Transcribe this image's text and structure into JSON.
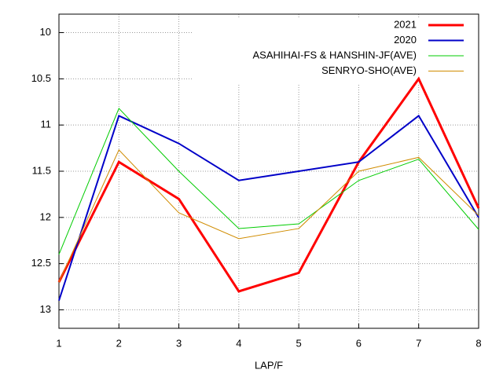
{
  "chart_data": {
    "type": "line",
    "xlabel": "LAP/F",
    "x": [
      1,
      2,
      3,
      4,
      5,
      6,
      7,
      8
    ],
    "series": [
      {
        "name": "2021",
        "color": "#ff0000",
        "width": 3,
        "values": [
          12.7,
          11.4,
          11.8,
          12.8,
          12.6,
          11.4,
          10.5,
          11.9
        ]
      },
      {
        "name": "2020",
        "color": "#0000c8",
        "width": 2,
        "values": [
          12.9,
          10.9,
          11.2,
          11.6,
          11.5,
          11.4,
          10.9,
          12.0
        ]
      },
      {
        "name": "ASAHIHAI-FS & HANSHIN-JF(AVE)",
        "color": "#00cc00",
        "width": 1,
        "values": [
          12.4,
          10.82,
          11.5,
          12.12,
          12.07,
          11.6,
          11.37,
          12.13
        ]
      },
      {
        "name": "SENRYO-SHO(AVE)",
        "color": "#d08c00",
        "width": 1,
        "values": [
          12.7,
          11.27,
          11.95,
          12.23,
          12.12,
          11.5,
          11.35,
          11.98
        ]
      }
    ],
    "xlim": [
      1,
      8
    ],
    "xticks": [
      1,
      2,
      3,
      4,
      5,
      6,
      7,
      8
    ],
    "ylim": [
      9.8,
      13.2
    ],
    "yticks": [
      10,
      10.5,
      11,
      11.5,
      12,
      12.5,
      13
    ],
    "y_inverted": true,
    "grid": true,
    "legend": "top-right"
  }
}
